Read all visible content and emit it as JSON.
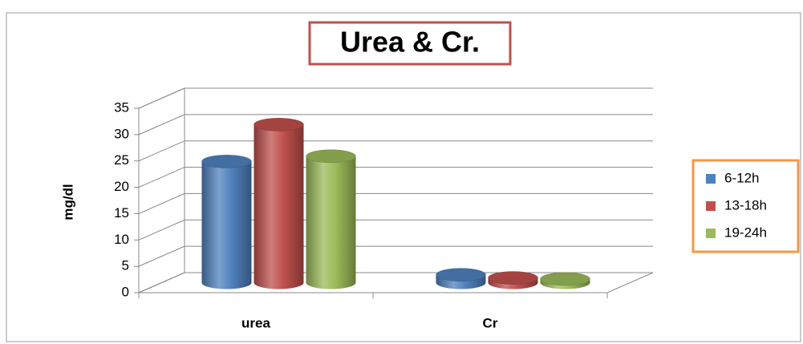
{
  "chart_data": {
    "type": "bar3d",
    "title": "Urea & Cr.",
    "y_label": "mg/dl",
    "categories": [
      "urea",
      "Cr"
    ],
    "series": [
      {
        "name": "6-12h",
        "color": "#4f81bd",
        "values": [
          23,
          1.5
        ]
      },
      {
        "name": "13-18h",
        "color": "#c0504d",
        "values": [
          30,
          0.9
        ]
      },
      {
        "name": "19-24h",
        "color": "#9bbb59",
        "values": [
          24,
          0.7
        ]
      }
    ],
    "ylim": [
      0,
      35
    ],
    "yticks": [
      0,
      5,
      10,
      15,
      20,
      25,
      30,
      35
    ],
    "grid": true,
    "legend": "right"
  }
}
